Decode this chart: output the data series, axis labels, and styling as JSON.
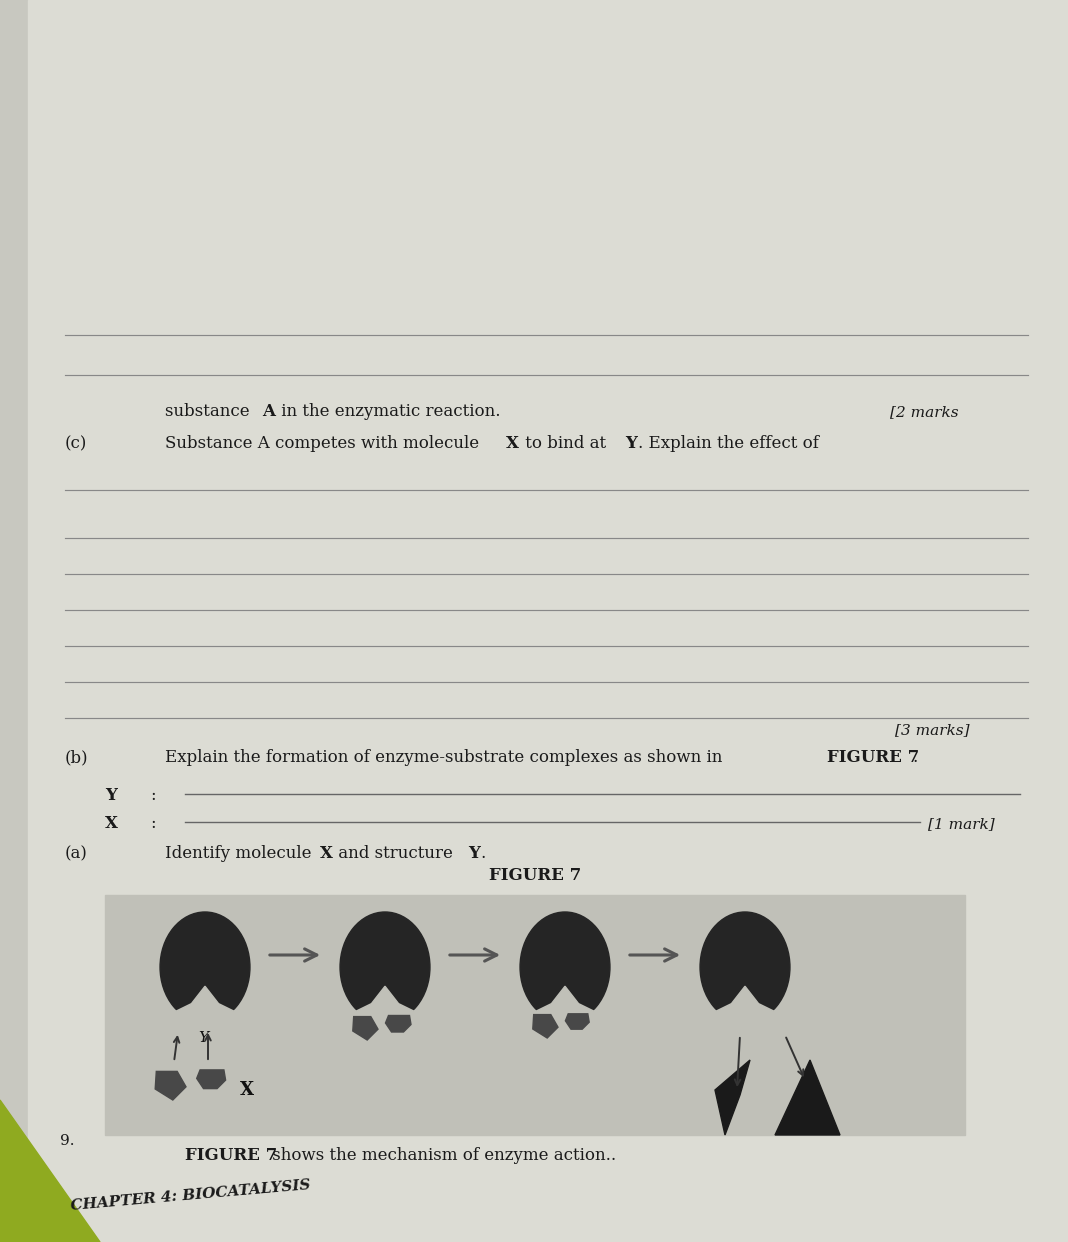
{
  "chapter_title": "CHAPTER 4: BIOCATALYSIS",
  "fig_caption_bold": "FIGURE 7",
  "fig_caption_rest": " shows the mechanism of enzyme action..",
  "question_number": "9.",
  "figure_label": "FIGURE 7",
  "part_a_label": "(a)",
  "x_mark": "[1 mark]",
  "part_b_label": "(b)",
  "part_b_mark": "[3 marks]",
  "part_c_label": "(c)",
  "part_c_mark": "[2 marks",
  "bg_color": "#c8c8c0",
  "paper_color": "#dcdcd4",
  "image_bg": "#c0c0b8",
  "dark_color": "#1a1a1a",
  "enzyme_color": "#252525",
  "substrate_color": "#484848",
  "line_color": "#777777",
  "corner_color": "#8faa20"
}
